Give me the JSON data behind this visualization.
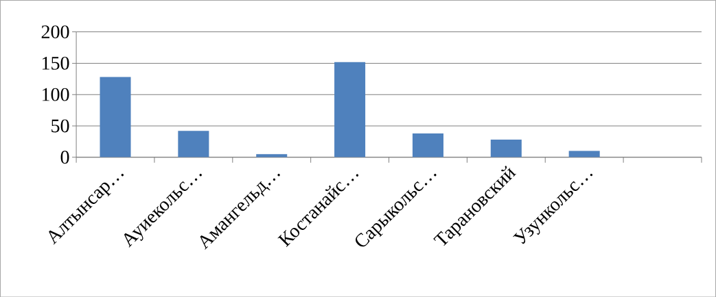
{
  "chart_data": {
    "type": "bar",
    "categories": [
      "Алтынсар…",
      "Ауиекольс…",
      "Амангельд…",
      "Костанайс…",
      "Сарыкольс…",
      "Тарановский",
      "Узункольс…",
      null
    ],
    "values": [
      128,
      42,
      5,
      152,
      38,
      28,
      10,
      null
    ],
    "color": "#4f81bd",
    "ylim": [
      0,
      200
    ],
    "yticks": [
      0,
      50,
      100,
      150,
      200
    ],
    "grid": "y"
  }
}
